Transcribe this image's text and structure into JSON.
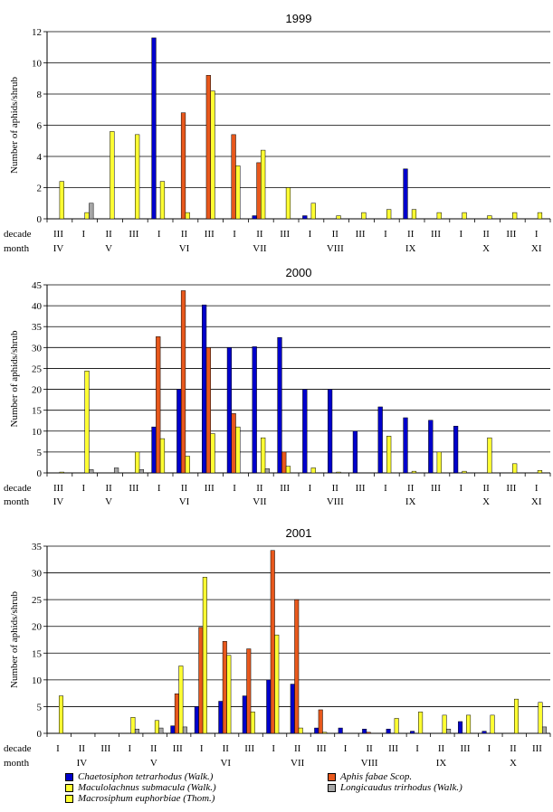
{
  "legend": [
    {
      "name": "Chaetosiphon tetrarhodus (Walk.)",
      "color": "#0000cc"
    },
    {
      "name": "Aphis fabae Scop.",
      "color": "#e8581c"
    },
    {
      "name": "Maculolachnus submacula (Walk.)",
      "color": "#ffff33"
    },
    {
      "name": "Longicaudus trirhodus (Walk.)",
      "color": "#a6a6a6"
    },
    {
      "name": "Macrosiphum euphorbiae (Thom.)",
      "color": "#ffff33"
    }
  ],
  "row_labels": {
    "decade": "decade",
    "month": "month"
  },
  "chart_data": [
    {
      "type": "bar",
      "title": "1999",
      "ylabel": "Number of aphids/shrub",
      "ylim": [
        0,
        12
      ],
      "yticks": [
        0,
        2,
        4,
        6,
        8,
        10,
        12
      ],
      "grid": true,
      "decades": [
        "III",
        "I",
        "II",
        "III",
        "I",
        "II",
        "III",
        "I",
        "II",
        "III",
        "I",
        "II",
        "III",
        "I",
        "II",
        "III",
        "I",
        "II",
        "III",
        "I"
      ],
      "months": [
        {
          "label": "IV",
          "at": 0
        },
        {
          "label": "V",
          "at": 2
        },
        {
          "label": "VI",
          "at": 5
        },
        {
          "label": "VII",
          "at": 8
        },
        {
          "label": "VIII",
          "at": 11
        },
        {
          "label": "IX",
          "at": 14
        },
        {
          "label": "X",
          "at": 17
        },
        {
          "label": "XI",
          "at": 19
        }
      ],
      "series": [
        {
          "name": "Chaetosiphon tetrarhodus (Walk.)",
          "values": [
            0,
            0,
            0,
            0,
            11.6,
            0,
            0,
            0,
            0.2,
            0,
            0.2,
            0,
            0,
            0,
            3.2,
            0,
            0,
            0,
            0,
            0
          ]
        },
        {
          "name": "Aphis fabae Scop.",
          "values": [
            0,
            0,
            0,
            0,
            0,
            6.8,
            9.2,
            5.4,
            3.6,
            0,
            0,
            0,
            0,
            0,
            0,
            0,
            0,
            0,
            0,
            0
          ]
        },
        {
          "name": "Maculolachnus submacula (Walk.)",
          "values": [
            2.4,
            0.4,
            5.6,
            5.4,
            2.4,
            0.4,
            8.2,
            3.4,
            4.4,
            2.0,
            1.0,
            0.2,
            0.4,
            0.6,
            0.6,
            0.4,
            0.4,
            0.2,
            0.4,
            0.4
          ]
        },
        {
          "name": "Longicaudus trirhodus (Walk.)",
          "values": [
            0,
            1.0,
            0,
            0,
            0,
            0,
            0,
            0,
            0,
            0,
            0,
            0,
            0,
            0,
            0,
            0,
            0,
            0,
            0,
            0
          ]
        }
      ]
    },
    {
      "type": "bar",
      "title": "2000",
      "ylabel": "Number of aphids/shrub",
      "ylim": [
        0,
        45
      ],
      "yticks": [
        0,
        5,
        10,
        15,
        20,
        25,
        30,
        35,
        40,
        45
      ],
      "grid": true,
      "decades": [
        "III",
        "I",
        "II",
        "III",
        "I",
        "II",
        "III",
        "I",
        "II",
        "III",
        "I",
        "II",
        "III",
        "I",
        "II",
        "III",
        "I",
        "II",
        "III",
        "I"
      ],
      "months": [
        {
          "label": "IV",
          "at": 0
        },
        {
          "label": "V",
          "at": 2
        },
        {
          "label": "VI",
          "at": 5
        },
        {
          "label": "VII",
          "at": 8
        },
        {
          "label": "VIII",
          "at": 11
        },
        {
          "label": "IX",
          "at": 14
        },
        {
          "label": "X",
          "at": 17
        },
        {
          "label": "XI",
          "at": 19
        }
      ],
      "series": [
        {
          "name": "Chaetosiphon tetrarhodus (Walk.)",
          "values": [
            0,
            0,
            0,
            0,
            11,
            20,
            40.2,
            30,
            30.2,
            32.4,
            20,
            20,
            10,
            15.8,
            13.2,
            12.6,
            11.2,
            0,
            0,
            0
          ]
        },
        {
          "name": "Aphis fabae Scop.",
          "values": [
            0,
            0,
            0,
            0,
            32.6,
            43.6,
            30,
            14.2,
            0,
            5,
            0,
            0,
            0,
            0,
            0,
            0,
            0,
            0,
            0,
            0
          ]
        },
        {
          "name": "Maculolachnus submacula (Walk.)",
          "values": [
            0.2,
            24.4,
            0,
            5,
            8.2,
            4,
            9.4,
            11,
            8.4,
            1.6,
            1.2,
            0.2,
            0,
            8.8,
            0.4,
            5,
            0.4,
            8.4,
            2.2,
            0.6
          ]
        },
        {
          "name": "Longicaudus trirhodus (Walk.)",
          "values": [
            0,
            0.8,
            1.2,
            0.8,
            0,
            0,
            0,
            0,
            1,
            0,
            0,
            0,
            0,
            0,
            0,
            0,
            0,
            0,
            0,
            0
          ]
        }
      ]
    },
    {
      "type": "bar",
      "title": "2001",
      "ylabel": "Number of aphids/shrub",
      "ylim": [
        0,
        35
      ],
      "yticks": [
        0,
        5,
        10,
        15,
        20,
        25,
        30,
        35
      ],
      "grid": true,
      "decades": [
        "I",
        "II",
        "III",
        "I",
        "II",
        "III",
        "I",
        "II",
        "III",
        "I",
        "II",
        "III",
        "I",
        "II",
        "III",
        "I",
        "II",
        "III",
        "I",
        "II",
        "III"
      ],
      "months": [
        {
          "label": "IV",
          "at": 1
        },
        {
          "label": "V",
          "at": 4
        },
        {
          "label": "VI",
          "at": 7
        },
        {
          "label": "VII",
          "at": 10
        },
        {
          "label": "VIII",
          "at": 13
        },
        {
          "label": "IX",
          "at": 16
        },
        {
          "label": "X",
          "at": 19
        }
      ],
      "series": [
        {
          "name": "Chaetosiphon tetrarhodus (Walk.)",
          "values": [
            0,
            0,
            0,
            0,
            0,
            1.4,
            5,
            6,
            7,
            10,
            9.2,
            1,
            1,
            0.8,
            0.8,
            0.4,
            0,
            2.2,
            0.4,
            0,
            0
          ]
        },
        {
          "name": "Aphis fabae Scop.",
          "values": [
            0,
            0,
            0,
            0,
            0,
            7.4,
            19.8,
            17.2,
            15.8,
            34.2,
            25,
            4.4,
            0,
            0.2,
            0,
            0,
            0,
            0,
            0,
            0,
            0
          ]
        },
        {
          "name": "Maculolachnus submacula (Walk.)",
          "values": [
            7,
            0,
            0,
            3,
            2.4,
            12.6,
            29.2,
            14.6,
            4,
            18.4,
            1,
            0.2,
            0,
            0,
            2.8,
            4,
            3.4,
            3.4,
            3.4,
            6.4,
            5.8
          ]
        },
        {
          "name": "Longicaudus trirhodus (Walk.)",
          "values": [
            0,
            0,
            0,
            0.8,
            1,
            1.2,
            0,
            0,
            0,
            0,
            0,
            0,
            0,
            0,
            0,
            0,
            0.8,
            0,
            0,
            0,
            1.2
          ]
        }
      ]
    }
  ]
}
